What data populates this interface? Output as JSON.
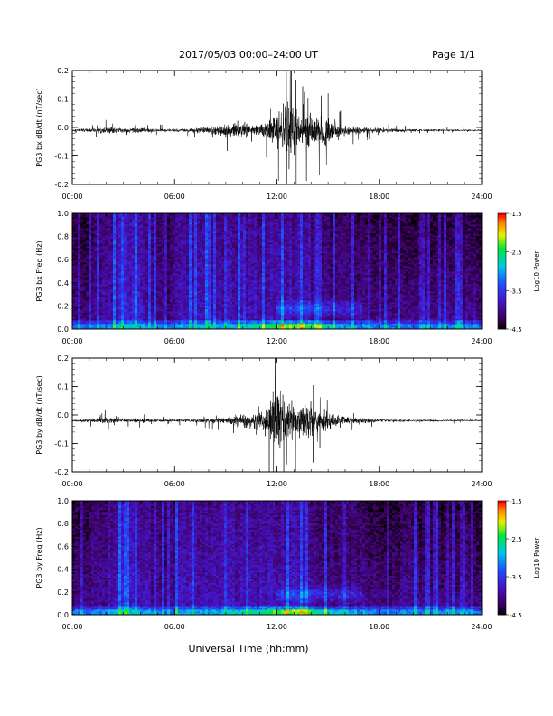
{
  "header": {
    "title": "2017/05/03  00:00–24:00 UT",
    "page": "Page 1/1"
  },
  "footer": {
    "xlabel": "Universal Time (hh:mm)"
  },
  "chart_data": [
    {
      "type": "line",
      "id": "bx-waveform",
      "ylabel": "PG3 bx dB/dt (nT/sec)",
      "xlabel": "",
      "xticks": [
        "00:00",
        "06:00",
        "12:00",
        "18:00",
        "24:00"
      ],
      "xlim": [
        0,
        24
      ],
      "ylim": [
        -0.2,
        0.2
      ],
      "yticks": [
        "-0.2",
        "-0.1",
        "0.0",
        "0.1",
        "0.2"
      ],
      "baseline": -0.01,
      "series": [
        {
          "x": [
            0,
            1,
            2,
            3,
            4,
            5,
            6,
            7,
            8,
            9,
            9.5,
            10,
            10.5,
            11,
            11.5,
            12,
            12.5,
            13,
            13.5,
            14,
            14.5,
            15,
            15.5,
            16,
            17,
            18,
            19,
            20,
            22,
            24
          ],
          "amplitude": [
            0.008,
            0.01,
            0.02,
            0.012,
            0.015,
            0.01,
            0.01,
            0.012,
            0.02,
            0.035,
            0.05,
            0.045,
            0.03,
            0.035,
            0.06,
            0.12,
            0.2,
            0.12,
            0.09,
            0.1,
            0.095,
            0.08,
            0.05,
            0.03,
            0.02,
            0.015,
            0.01,
            0.008,
            0.006,
            0.005
          ]
        }
      ]
    },
    {
      "type": "heatmap",
      "id": "bx-spectrogram",
      "ylabel": "PG3 bx Freq (Hz)",
      "xticks": [
        "00:00",
        "06:00",
        "12:00",
        "18:00",
        "24:00"
      ],
      "yticks": [
        "0.0",
        "0.2",
        "0.4",
        "0.6",
        "0.8",
        "1.0"
      ],
      "xlim": [
        0,
        24
      ],
      "ylim": [
        0,
        1
      ],
      "colorbar": {
        "label": "Log10 Power",
        "ticks": [
          "-1.5",
          "-2.5",
          "-3.5",
          "-4.5"
        ],
        "range": [
          -4.5,
          -1.5
        ]
      },
      "features": {
        "broadband_peak_hours": [
          2.5,
          4.0
        ],
        "low_freq_band_hz": [
          0.0,
          0.05
        ],
        "afternoon_band_hz": [
          0.1,
          0.25
        ]
      }
    },
    {
      "type": "line",
      "id": "by-waveform",
      "ylabel": "PG3 by dB/dt (nT/sec)",
      "xticks": [
        "00:00",
        "06:00",
        "12:00",
        "18:00",
        "24:00"
      ],
      "xlim": [
        0,
        24
      ],
      "ylim": [
        -0.2,
        0.2
      ],
      "yticks": [
        "-0.2",
        "-0.1",
        "0.0",
        "0.1",
        "0.2"
      ],
      "baseline": -0.02,
      "series": [
        {
          "x": [
            0,
            1,
            2,
            3,
            4,
            5,
            6,
            7,
            8,
            9,
            9.5,
            10,
            10.5,
            11,
            11.5,
            12,
            12.5,
            13,
            13.5,
            14,
            14.5,
            15,
            15.5,
            16,
            17,
            18,
            19,
            20,
            22,
            24
          ],
          "amplitude": [
            0.006,
            0.01,
            0.02,
            0.01,
            0.012,
            0.008,
            0.008,
            0.01,
            0.015,
            0.02,
            0.03,
            0.045,
            0.04,
            0.05,
            0.09,
            0.2,
            0.15,
            0.1,
            0.1,
            0.11,
            0.07,
            0.05,
            0.04,
            0.025,
            0.015,
            0.01,
            0.008,
            0.006,
            0.005,
            0.004
          ]
        }
      ]
    },
    {
      "type": "heatmap",
      "id": "by-spectrogram",
      "ylabel": "PG3 by Freq (Hz)",
      "xticks": [
        "00:00",
        "06:00",
        "12:00",
        "18:00",
        "24:00"
      ],
      "yticks": [
        "0.0",
        "0.2",
        "0.4",
        "0.6",
        "0.8",
        "1.0"
      ],
      "xlim": [
        0,
        24
      ],
      "ylim": [
        0,
        1
      ],
      "colorbar": {
        "label": "Log10 Power",
        "ticks": [
          "-1.5",
          "-2.5",
          "-3.5",
          "-4.5"
        ],
        "range": [
          -4.5,
          -1.5
        ]
      },
      "features": {
        "broadband_peak_hours": [
          2.5,
          4.0
        ],
        "low_freq_band_hz": [
          0.0,
          0.05
        ],
        "afternoon_band_hz": [
          0.1,
          0.3
        ]
      }
    }
  ]
}
